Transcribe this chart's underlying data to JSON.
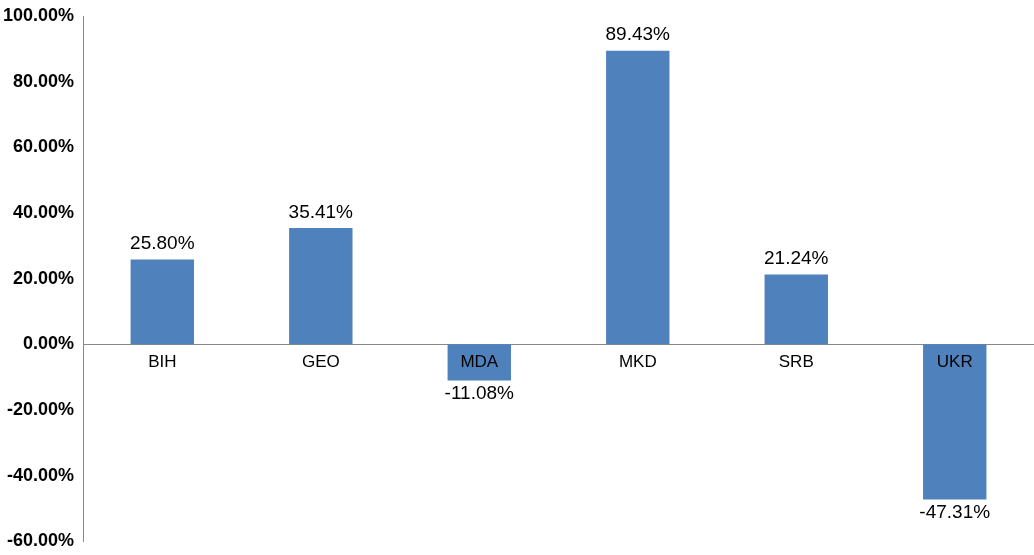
{
  "chart_data": {
    "type": "bar",
    "categories": [
      "BIH",
      "GEO",
      "MDA",
      "MKD",
      "SRB",
      "UKR"
    ],
    "values": [
      25.8,
      35.41,
      -11.08,
      89.43,
      21.24,
      -47.31
    ],
    "value_labels": [
      "25.80%",
      "35.41%",
      "-11.08%",
      "89.43%",
      "21.24%",
      "-47.31%"
    ],
    "color": "#4f81bd",
    "ylim": [
      -60,
      100
    ],
    "yticks": [
      {
        "value": -60,
        "label": "-60.00%"
      },
      {
        "value": -40,
        "label": "-40.00%"
      },
      {
        "value": -20,
        "label": "-20.00%"
      },
      {
        "value": 0,
        "label": "0.00%"
      },
      {
        "value": 20,
        "label": "20.00%"
      },
      {
        "value": 40,
        "label": "40.00%"
      },
      {
        "value": 60,
        "label": "60.00%"
      },
      {
        "value": 80,
        "label": "80.00%"
      },
      {
        "value": 100,
        "label": "100.00%"
      }
    ],
    "grid": false,
    "legend": false
  }
}
